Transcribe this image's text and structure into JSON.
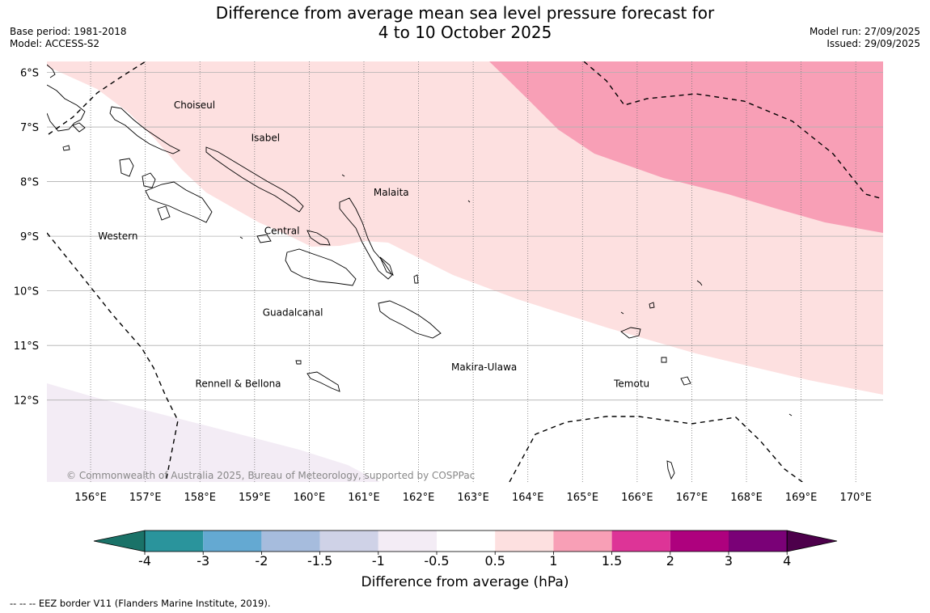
{
  "title_line1": "Difference from average mean sea level pressure forecast for",
  "title_line2": "4 to 10 October 2025",
  "base_period": "Base period: 1981-2018",
  "model": "Model: ACCESS-S2",
  "model_run": "Model run: 27/09/2025",
  "issued": "Issued: 29/09/2025",
  "latitude_labels": [
    "6°S",
    "7°S",
    "8°S",
    "9°S",
    "10°S",
    "11°S",
    "12°S"
  ],
  "longitude_labels": [
    "156°E",
    "157°E",
    "158°E",
    "159°E",
    "160°E",
    "161°E",
    "162°E",
    "163°E",
    "164°E",
    "165°E",
    "166°E",
    "167°E",
    "168°E",
    "169°E",
    "170°E"
  ],
  "map_extent": {
    "lon_min": 155.2,
    "lon_max": 170.5,
    "lat_north": -5.8,
    "lat_south": -13.5
  },
  "provinces": [
    {
      "name": "Choiseul",
      "lon": 157.9,
      "lat": -6.6
    },
    {
      "name": "Isabel",
      "lon": 159.2,
      "lat": -7.2
    },
    {
      "name": "Malaita",
      "lon": 161.5,
      "lat": -8.2
    },
    {
      "name": "Western",
      "lon": 156.5,
      "lat": -9.0
    },
    {
      "name": "Central",
      "lon": 159.5,
      "lat": -8.9
    },
    {
      "name": "Guadalcanal",
      "lon": 159.7,
      "lat": -10.4
    },
    {
      "name": "Makira-Ulawa",
      "lon": 163.2,
      "lat": -11.4
    },
    {
      "name": "Rennell & Bellona",
      "lon": 158.7,
      "lat": -11.7
    },
    {
      "name": "Temotu",
      "lon": 165.9,
      "lat": -11.7
    }
  ],
  "copyright": "© Commonwealth of Australia 2025, Bureau of Meteorology, supported by COSPPac",
  "colorbar": {
    "title": "Difference from average (hPa)",
    "tick_labels": [
      "-4",
      "-3",
      "-2",
      "-1.5",
      "-1",
      "-0.5",
      "0.5",
      "1",
      "1.5",
      "2",
      "3",
      "4"
    ],
    "colors": [
      "#1a7268",
      "#2a949c",
      "#64a9d2",
      "#a6bcdd",
      "#cfd2e7",
      "#f3ecf5",
      "#ffffff",
      "#fde0e0",
      "#f89fb6",
      "#dd3497",
      "#ae017e",
      "#7a0177",
      "#4d004b"
    ]
  },
  "footnote": "--  --  -- EEZ border V11 (Flanders Marine Institute, 2019)."
}
